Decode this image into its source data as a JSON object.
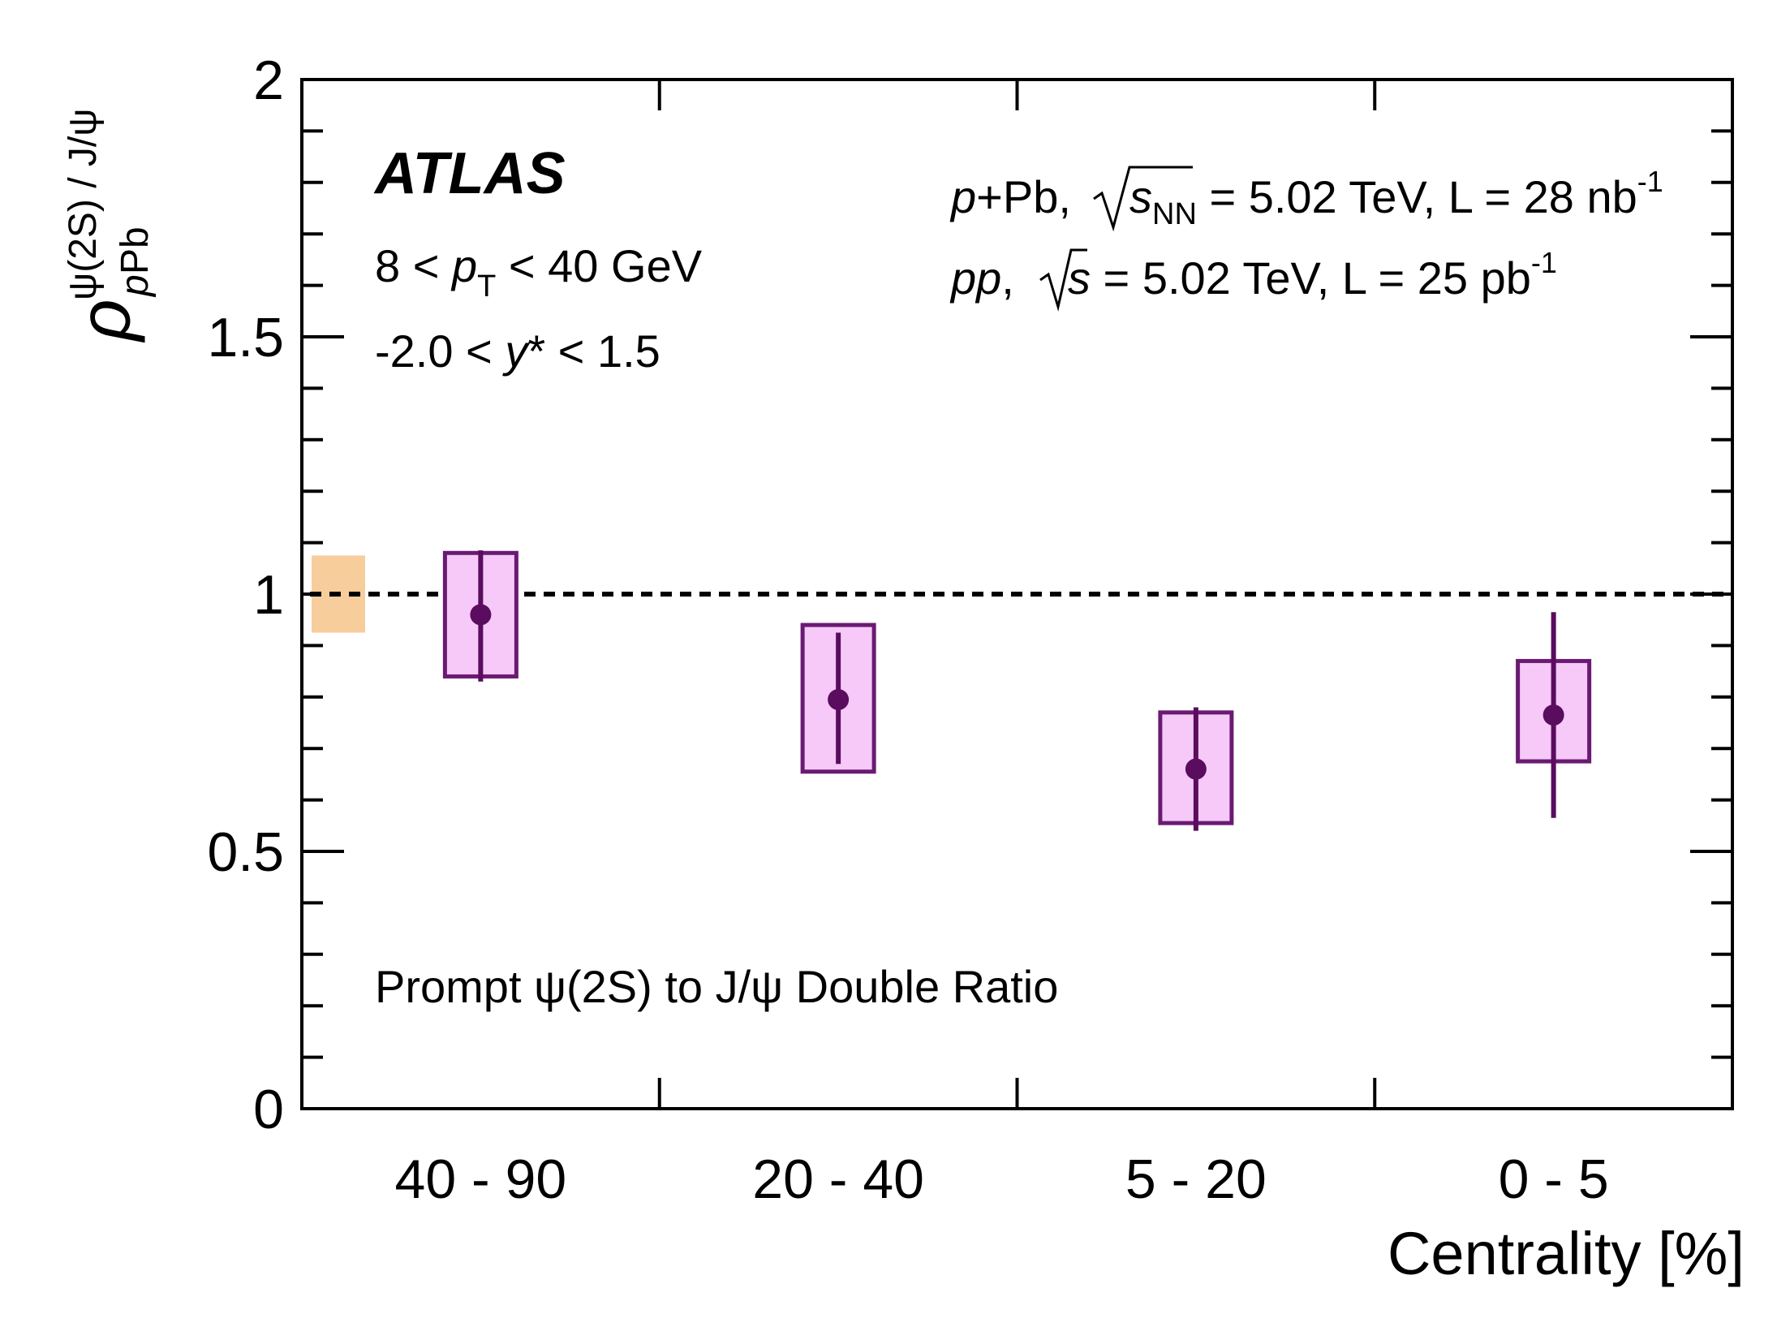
{
  "chart_data": {
    "type": "scatter",
    "title": "",
    "xlabel": "Centrality [%]",
    "ylabel": {
      "symbol": "ρ",
      "superscript": "ψ(2S) / J/ψ",
      "subscript_italic": "p",
      "subscript": "Pb"
    },
    "ylim": [
      0,
      2
    ],
    "y_ticks": [
      "0",
      "0.5",
      "1",
      "1.5",
      "2"
    ],
    "categories": [
      "40 - 90",
      "20 - 40",
      "5 - 20",
      "0 - 5"
    ],
    "series": [
      {
        "name": "Prompt ψ(2S) to J/ψ Double Ratio",
        "values": [
          0.96,
          0.795,
          0.66,
          0.765
        ],
        "stat_err_low": [
          0.83,
          0.67,
          0.54,
          0.565
        ],
        "stat_err_high": [
          1.085,
          0.925,
          0.78,
          0.965
        ],
        "sys_low": [
          0.84,
          0.655,
          0.555,
          0.675
        ],
        "sys_high": [
          1.08,
          0.94,
          0.77,
          0.87
        ],
        "marker_color": "#5a0c5e",
        "box_fill": "#f6c9f8",
        "box_edge": "#6a1a72"
      }
    ],
    "global_uncertainty": {
      "low": 0.925,
      "high": 1.075,
      "color": "#f8cd9c"
    },
    "reference_line": 1.0
  },
  "annotations": {
    "experiment": "ATLAS",
    "pt_range": {
      "pre": "8 < ",
      "var": "p",
      "sub": "T",
      "post": " < 40 GeV"
    },
    "y_range": {
      "pre": "-2.0 < ",
      "var": "y",
      "post": "* < 1.5"
    },
    "ppb_line": {
      "var": "p",
      "text1": "+Pb, ",
      "sqrt_var": "s",
      "sqrt_sub": "NN",
      "text2": " = 5.02 TeV, L = 28 nb",
      "sup": "-1"
    },
    "pp_line": {
      "var": "pp",
      "text1": ", ",
      "sqrt_var": "s",
      "text2": " = 5.02 TeV, L = 25 pb",
      "sup": "-1"
    },
    "legend": "Prompt ψ(2S) to J/ψ Double Ratio"
  }
}
